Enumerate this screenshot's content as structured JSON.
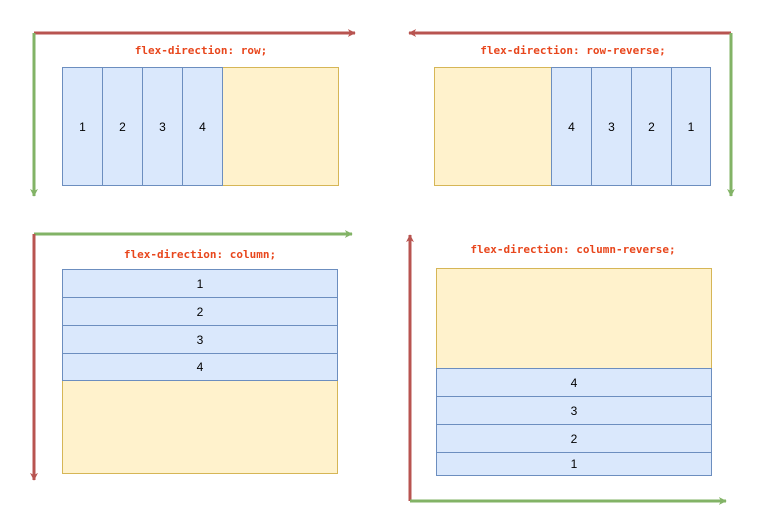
{
  "colors": {
    "container_fill": "#fff2cc",
    "container_border": "#d6b656",
    "item_fill": "#dae8fc",
    "item_border": "#6c8ebf",
    "main_axis_arrow": "#b85450",
    "cross_axis_arrow": "#82b366",
    "label_text": "#e8461c"
  },
  "panels": {
    "row": {
      "label": "flex-direction: row;",
      "items": [
        "1",
        "2",
        "3",
        "4"
      ]
    },
    "row_reverse": {
      "label": "flex-direction: row-reverse;",
      "items": [
        "4",
        "3",
        "2",
        "1"
      ]
    },
    "column": {
      "label": "flex-direction: column;",
      "items": [
        "1",
        "2",
        "3",
        "4"
      ]
    },
    "column_reverse": {
      "label": "flex-direction: column-reverse;",
      "items": [
        "4",
        "3",
        "2",
        "1"
      ]
    }
  }
}
